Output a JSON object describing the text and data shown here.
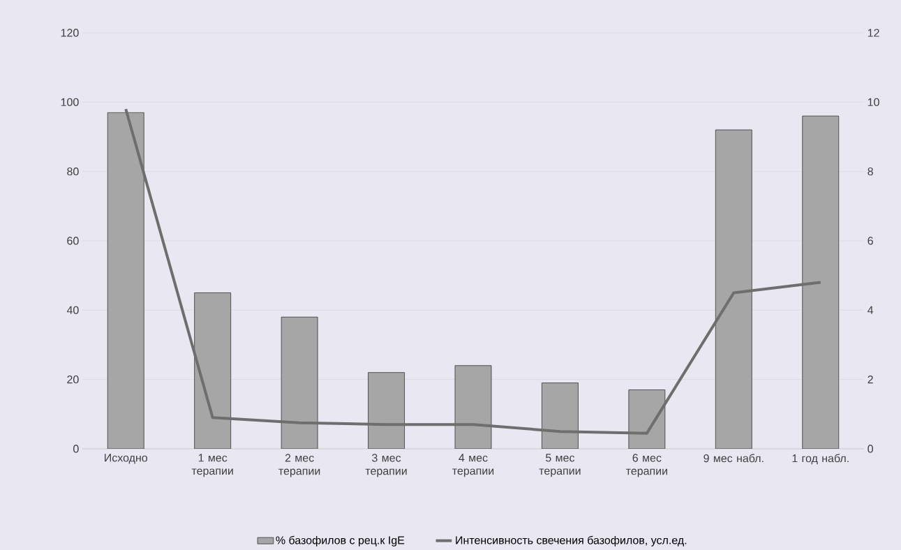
{
  "chart_data": {
    "type": "bar",
    "categories": [
      "Исходно",
      "1 мес терапии",
      "2 мес терапии",
      "3 мес терапии",
      "4 мес терапии",
      "5 мес терапии",
      "6 мес терапии",
      "9 мес набл.",
      "1 год набл."
    ],
    "series": [
      {
        "name": "% базофилов с рец.к IgE",
        "color": "#a6a6a6",
        "values": [
          97,
          45,
          38,
          22,
          24,
          19,
          17,
          92,
          96
        ]
      },
      {
        "name": "Интенсивность свечения базофилов, усл.ед.",
        "type": "line",
        "axis": "y2",
        "color": "#6e6e6e",
        "values": [
          9.8,
          0.9,
          0.75,
          0.7,
          0.7,
          0.5,
          0.45,
          4.5,
          4.8
        ]
      }
    ],
    "ylim": [
      0,
      120
    ],
    "yticks": [
      0,
      20,
      40,
      60,
      80,
      100,
      120
    ],
    "y2lim": [
      0,
      12
    ],
    "y2ticks": [
      0,
      2,
      4,
      6,
      8,
      10,
      12
    ],
    "grid": "y",
    "legend": "bottom",
    "marker": "none",
    "line_style": "solid"
  }
}
